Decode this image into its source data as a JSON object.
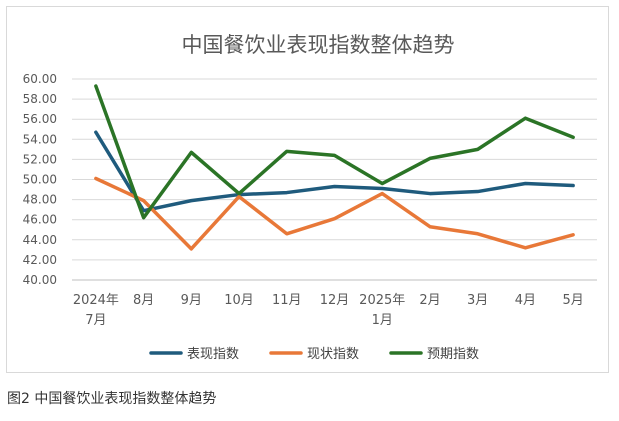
{
  "caption": "图2 中国餐饮业表现指数整体趋势",
  "chart_data": {
    "type": "line",
    "title": "中国餐饮业表现指数整体趋势",
    "categories": [
      [
        "2024年",
        "7月"
      ],
      [
        "8月"
      ],
      [
        "9月"
      ],
      [
        "10月"
      ],
      [
        "11月"
      ],
      [
        "12月"
      ],
      [
        "2025年",
        "1月"
      ],
      [
        "2月"
      ],
      [
        "3月"
      ],
      [
        "4月"
      ],
      [
        "5月"
      ]
    ],
    "ylim": [
      40,
      60
    ],
    "yticks": [
      "40.00",
      "42.00",
      "44.00",
      "46.00",
      "48.00",
      "50.00",
      "52.00",
      "54.00",
      "56.00",
      "58.00",
      "60.00"
    ],
    "grid": true,
    "legend_position": "bottom",
    "series": [
      {
        "name": "表现指数",
        "color": "#1f5b7d",
        "values": [
          54.7,
          46.9,
          47.9,
          48.5,
          48.7,
          49.3,
          49.1,
          48.6,
          48.8,
          49.6,
          49.4
        ]
      },
      {
        "name": "现状指数",
        "color": "#e87838",
        "values": [
          50.1,
          47.9,
          43.1,
          48.3,
          44.6,
          46.1,
          48.6,
          45.3,
          44.6,
          43.2,
          44.5
        ]
      },
      {
        "name": "预期指数",
        "color": "#2b7426",
        "values": [
          59.3,
          46.2,
          52.7,
          48.6,
          52.8,
          52.4,
          49.6,
          52.1,
          53.0,
          56.1,
          54.2
        ]
      }
    ]
  }
}
